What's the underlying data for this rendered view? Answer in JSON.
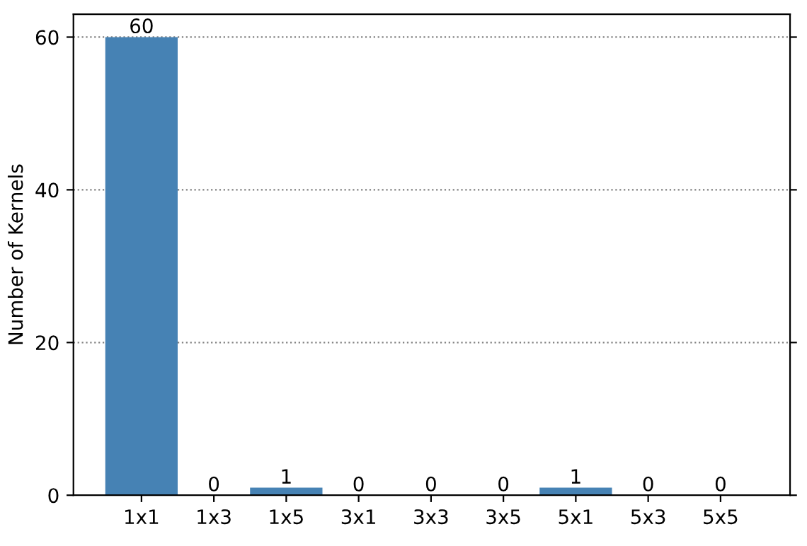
{
  "chart_data": {
    "type": "bar",
    "ylabel": "Number of Kernels",
    "categories": [
      "1x1",
      "1x3",
      "1x5",
      "3x1",
      "3x3",
      "3x5",
      "5x1",
      "5x3",
      "5x5"
    ],
    "values": [
      60,
      0,
      1,
      0,
      0,
      0,
      1,
      0,
      0
    ],
    "color": "#4682b4",
    "ylim": [
      0,
      63
    ],
    "yticks": [
      0,
      20,
      40,
      60
    ],
    "grid": "y",
    "data_labels": true
  }
}
